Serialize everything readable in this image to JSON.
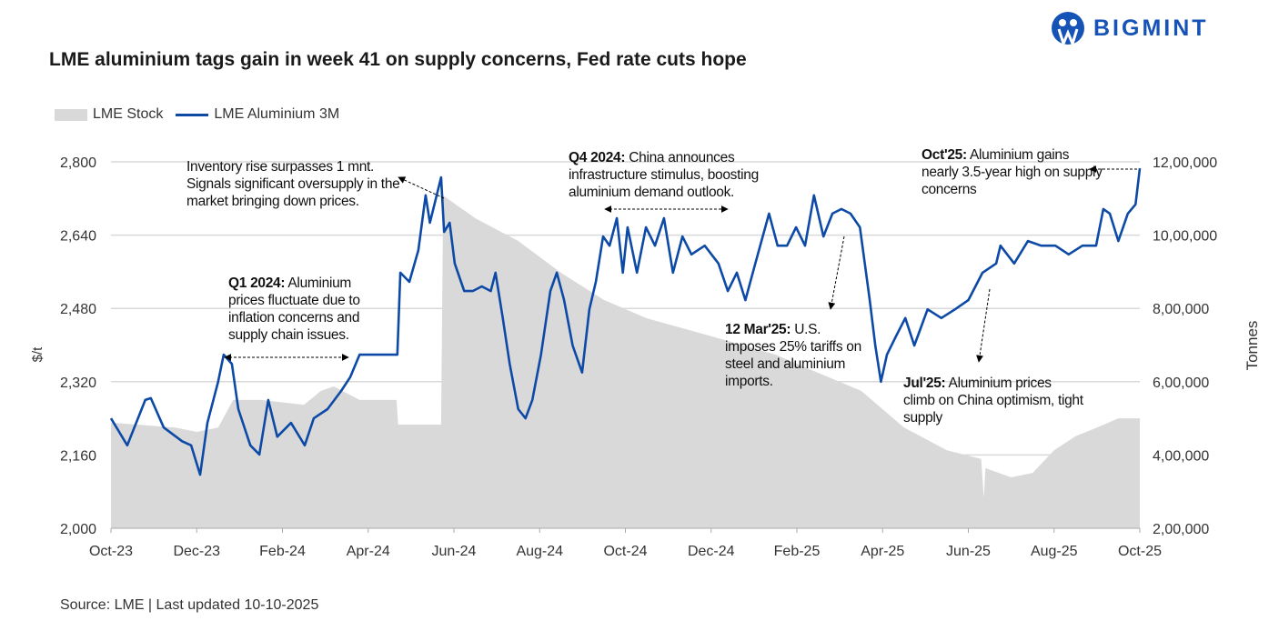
{
  "logo_text": "BIGMINT",
  "source": "Source: LME | Last updated 10-10-2025",
  "annotations": [
    {
      "bold": "",
      "text": "Inventory rise surpasses 1 mnt. Signals significant oversupply in the market bringing down prices."
    },
    {
      "bold": "Q1 2024:",
      "text": " Aluminium prices fluctuate due to inflation concerns and supply chain issues."
    },
    {
      "bold": "Q4 2024:",
      "text": " China announces infrastructure stimulus, boosting aluminium demand outlook."
    },
    {
      "bold": "12 Mar'25:",
      "text": " U.S. imposes 25% tariffs on steel and aluminium imports."
    },
    {
      "bold": "Jul'25:",
      "text": " Aluminium prices climb on China optimism, tight supply"
    },
    {
      "bold": "Oct'25:",
      "text": " Aluminium gains nearly 3.5-year high on supply concerns"
    }
  ],
  "colors": {
    "price": "#0d4aa6",
    "stock": "#d9d9d9",
    "grid": "#d9d9d9",
    "logo": "#1553b6"
  },
  "chart_data": {
    "type": "line+area",
    "title": "LME aluminium tags gain in week 41 on supply concerns, Fed rate cuts hope",
    "legend": [
      "LME Stock",
      "LME Aluminium 3M"
    ],
    "legend_position": "top-left",
    "x_unit": "months since Oct-23",
    "x_ticks": [
      "Oct-23",
      "Dec-23",
      "Feb-24",
      "Apr-24",
      "Jun-24",
      "Aug-24",
      "Oct-24",
      "Dec-24",
      "Feb-25",
      "Apr-25",
      "Jun-25",
      "Aug-25",
      "Oct-25"
    ],
    "ylabel": "$/t",
    "ylim": [
      2000,
      2800
    ],
    "y_ticks": [
      "2,000",
      "2,160",
      "2,320",
      "2,480",
      "2,640",
      "2,800"
    ],
    "y2label": "Tonnes",
    "y2lim": [
      200000,
      1200000
    ],
    "y2_ticks": [
      "2,00,000",
      "4,00,000",
      "6,00,000",
      "8,00,000",
      "10,00,000",
      "12,00,000"
    ],
    "grid": true,
    "series": [
      {
        "name": "LME Aluminium 3M",
        "axis": "left",
        "x": [
          0,
          0.38,
          0.8,
          0.93,
          1.23,
          1.66,
          1.87,
          2.08,
          2.25,
          2.5,
          2.63,
          2.82,
          2.97,
          3.25,
          3.46,
          3.67,
          3.88,
          4.2,
          4.52,
          4.73,
          5.05,
          5.37,
          5.58,
          5.8,
          6.68,
          6.75,
          6.96,
          7.17,
          7.34,
          7.44,
          7.7,
          7.77,
          7.9,
          8.02,
          8.24,
          8.44,
          8.65,
          8.86,
          8.97,
          9.14,
          9.3,
          9.5,
          9.67,
          9.83,
          10.03,
          10.25,
          10.4,
          10.57,
          10.77,
          10.99,
          11.16,
          11.31,
          11.48,
          11.63,
          11.8,
          11.94,
          12.05,
          12.27,
          12.48,
          12.69,
          12.9,
          13.11,
          13.33,
          13.54,
          13.85,
          14.17,
          14.39,
          14.6,
          14.8,
          15.03,
          15.35,
          15.55,
          15.77,
          15.98,
          16.19,
          16.4,
          16.62,
          16.83,
          17.04,
          17.25,
          17.47,
          17.7,
          17.83,
          17.96,
          18.1,
          18.31,
          18.53,
          18.74,
          19.05,
          19.37,
          19.69,
          20.0,
          20.33,
          20.65,
          20.75,
          21.07,
          21.39,
          21.7,
          22.03,
          22.34,
          22.66,
          22.98,
          23.15,
          23.3,
          23.5,
          23.72,
          23.9,
          24
        ],
        "values": [
          2240,
          2181,
          2280,
          2284,
          2220,
          2190,
          2181,
          2117,
          2230,
          2320,
          2379,
          2359,
          2260,
          2181,
          2161,
          2280,
          2200,
          2230,
          2181,
          2240,
          2260,
          2300,
          2330,
          2379,
          2379,
          2558,
          2538,
          2607,
          2727,
          2667,
          2766,
          2647,
          2667,
          2578,
          2518,
          2518,
          2528,
          2518,
          2558,
          2459,
          2359,
          2260,
          2240,
          2280,
          2379,
          2518,
          2558,
          2498,
          2399,
          2340,
          2478,
          2538,
          2637,
          2617,
          2677,
          2558,
          2657,
          2558,
          2657,
          2617,
          2677,
          2558,
          2637,
          2598,
          2617,
          2578,
          2518,
          2558,
          2498,
          2578,
          2687,
          2617,
          2617,
          2657,
          2617,
          2727,
          2637,
          2687,
          2697,
          2687,
          2657,
          2498,
          2399,
          2320,
          2379,
          2419,
          2459,
          2399,
          2478,
          2459,
          2478,
          2498,
          2558,
          2578,
          2617,
          2578,
          2627,
          2617,
          2617,
          2598,
          2617,
          2617,
          2697,
          2687,
          2627,
          2687,
          2707,
          2786
        ]
      },
      {
        "name": "LME Stock",
        "axis": "right",
        "x": [
          0,
          1.5,
          2,
          2.5,
          2.85,
          3.5,
          4.5,
          4.9,
          5.2,
          5.8,
          6.66,
          6.7,
          7.7,
          7.75,
          8.5,
          9.5,
          10.5,
          11.5,
          12.5,
          14,
          15.5,
          16.5,
          17.5,
          18.5,
          19.5,
          20.3,
          20.36,
          20.4,
          21,
          21.5,
          22,
          22.5,
          23,
          23.5,
          24
        ],
        "values": [
          488000,
          475000,
          463000,
          475000,
          550000,
          550000,
          537000,
          575000,
          587000,
          550000,
          550000,
          483000,
          483000,
          1108000,
          1046000,
          984000,
          897000,
          823000,
          773000,
          724000,
          674000,
          624000,
          575000,
          475000,
          413000,
          389000,
          282000,
          364000,
          339000,
          351000,
          413000,
          451000,
          475000,
          500000,
          500000
        ]
      }
    ]
  }
}
